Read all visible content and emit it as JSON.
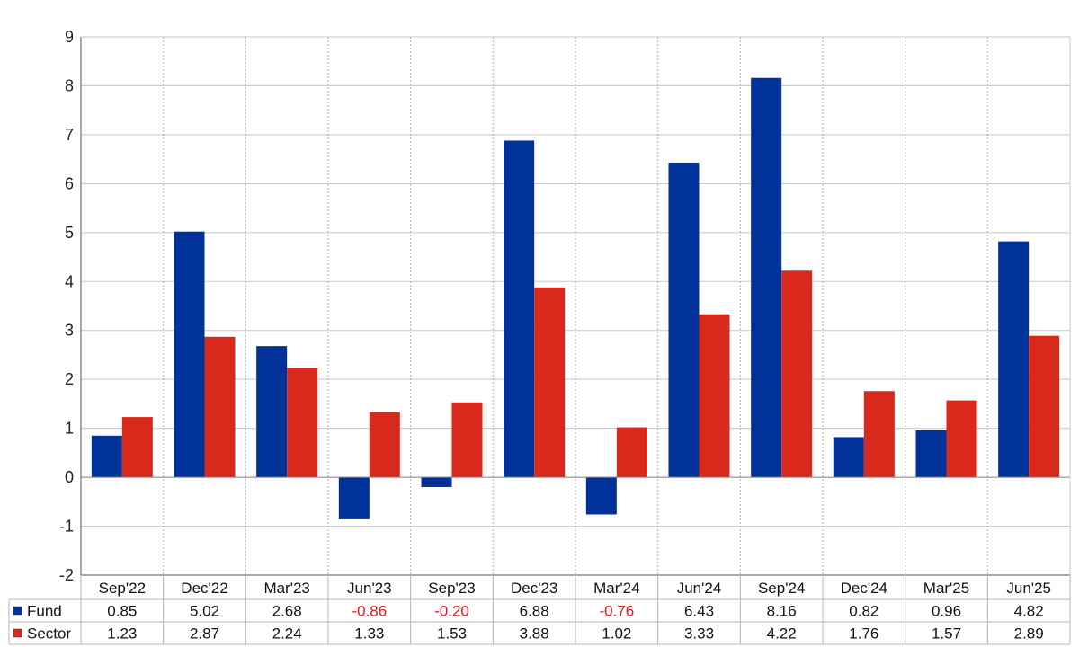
{
  "chart_data": {
    "type": "bar",
    "categories": [
      "Sep'22",
      "Dec'22",
      "Mar'23",
      "Jun'23",
      "Sep'23",
      "Dec'23",
      "Mar'24",
      "Jun'24",
      "Sep'24",
      "Dec'24",
      "Mar'25",
      "Jun'25"
    ],
    "series": [
      {
        "name": "Fund",
        "color": "#003299",
        "values": [
          0.85,
          5.02,
          2.68,
          -0.86,
          -0.2,
          6.88,
          -0.76,
          6.43,
          8.16,
          0.82,
          0.96,
          4.82
        ],
        "labels": [
          "0.85",
          "5.02",
          "2.68",
          "-0.86",
          "-0.20",
          "6.88",
          "-0.76",
          "6.43",
          "8.16",
          "0.82",
          "0.96",
          "4.82"
        ]
      },
      {
        "name": "Sector",
        "color": "#d9291c",
        "values": [
          1.23,
          2.87,
          2.24,
          1.33,
          1.53,
          3.88,
          1.02,
          3.33,
          4.22,
          1.76,
          1.57,
          2.89
        ],
        "labels": [
          "1.23",
          "2.87",
          "2.24",
          "1.33",
          "1.53",
          "3.88",
          "1.02",
          "3.33",
          "4.22",
          "1.76",
          "1.57",
          "2.89"
        ]
      }
    ],
    "title": "",
    "xlabel": "",
    "ylabel": "",
    "ylim": [
      -2,
      9
    ],
    "yticks": [
      "-2",
      "-1",
      "0",
      "1",
      "2",
      "3",
      "4",
      "5",
      "6",
      "7",
      "8",
      "9"
    ],
    "grid": true,
    "legend": "data-table-left",
    "negative_label_color": "#e8141e"
  }
}
